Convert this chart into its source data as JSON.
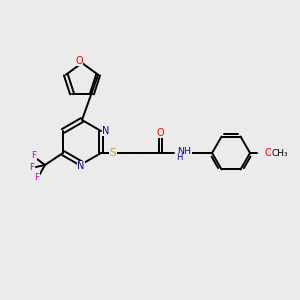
{
  "bg_color": "#ebebeb",
  "bond_color": "#000000",
  "atom_colors": {
    "O": "#ff0000",
    "N": "#0000cc",
    "S": "#ccaa00",
    "F": "#cc00cc",
    "NH": "#0000cc"
  },
  "figsize": [
    3.0,
    3.0
  ],
  "dpi": 100,
  "lw": 1.4
}
